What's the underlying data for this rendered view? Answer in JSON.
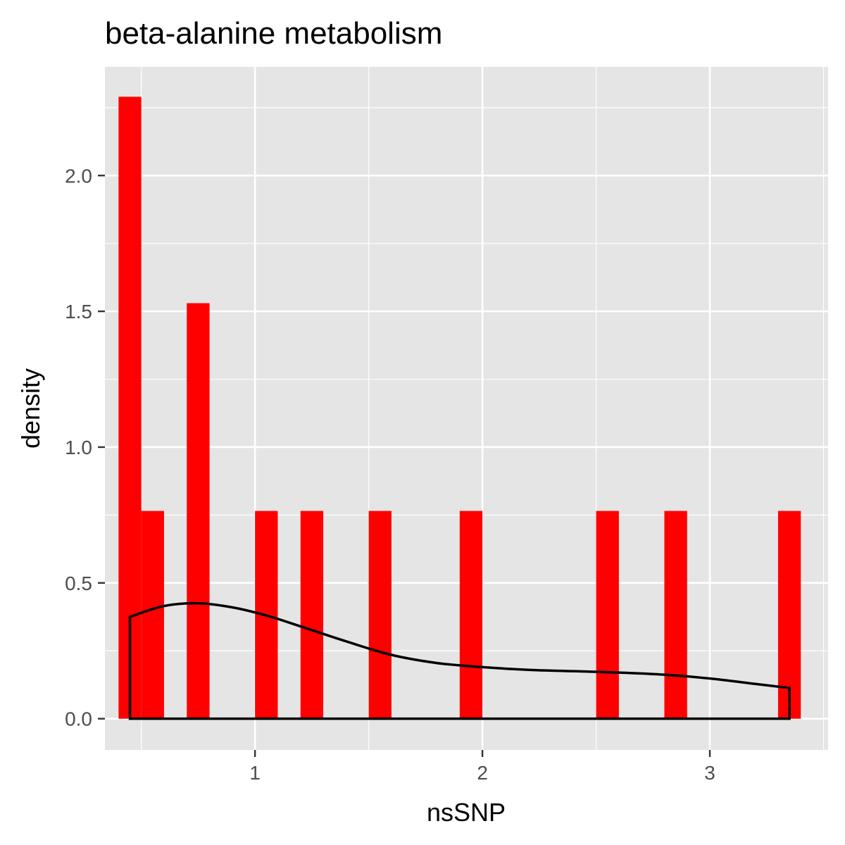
{
  "chart_data": {
    "type": "bar",
    "title": "beta-alanine metabolism",
    "xlabel": "nsSNP",
    "ylabel": "density",
    "xlim": [
      0.34,
      3.52
    ],
    "ylim": [
      -0.115,
      2.4
    ],
    "x_ticks": [
      1,
      2,
      3
    ],
    "x_tick_labels": [
      "1",
      "2",
      "3"
    ],
    "y_ticks": [
      0,
      0.5,
      1,
      1.5,
      2
    ],
    "y_tick_labels": [
      "0.0",
      "0.5",
      "1.0",
      "1.5",
      "2.0"
    ],
    "grid": true,
    "background": "#e5e5e5",
    "bar_color": "#ff0000",
    "density_color": "#000000",
    "bins": [
      {
        "x0": 0.4,
        "x1": 0.5,
        "density": 2.29
      },
      {
        "x0": 0.5,
        "x1": 0.6,
        "density": 0.765
      },
      {
        "x0": 0.7,
        "x1": 0.8,
        "density": 1.53
      },
      {
        "x0": 1.0,
        "x1": 1.1,
        "density": 0.765
      },
      {
        "x0": 1.2,
        "x1": 1.3,
        "density": 0.765
      },
      {
        "x0": 1.5,
        "x1": 1.6,
        "density": 0.765
      },
      {
        "x0": 1.9,
        "x1": 2.0,
        "density": 0.765
      },
      {
        "x0": 2.5,
        "x1": 2.6,
        "density": 0.765
      },
      {
        "x0": 2.8,
        "x1": 2.9,
        "density": 0.765
      },
      {
        "x0": 3.3,
        "x1": 3.4,
        "density": 0.765
      }
    ],
    "density_curve": {
      "x": [
        0.45,
        0.6,
        0.75,
        0.9,
        1.05,
        1.2,
        1.4,
        1.6,
        1.8,
        2.0,
        2.2,
        2.4,
        2.6,
        2.8,
        3.0,
        3.2,
        3.35
      ],
      "y": [
        0.375,
        0.415,
        0.425,
        0.41,
        0.38,
        0.34,
        0.285,
        0.235,
        0.205,
        0.19,
        0.18,
        0.175,
        0.17,
        0.162,
        0.148,
        0.128,
        0.113
      ]
    }
  }
}
